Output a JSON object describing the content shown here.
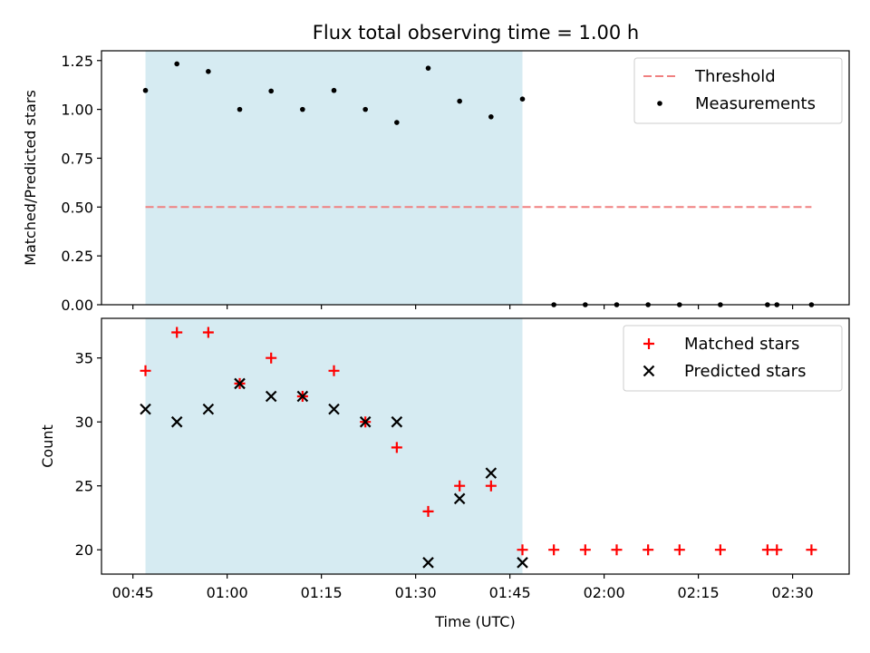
{
  "title": "Flux total observing time = 1.00 h",
  "chart_data": [
    {
      "type": "scatter",
      "ylabel": "Matched/Predicted stars",
      "xlim": [
        "00:40",
        "02:39"
      ],
      "ylim": [
        0,
        1.3
      ],
      "x_ticks": [
        "00:45",
        "01:00",
        "01:15",
        "01:30",
        "01:45",
        "02:00",
        "02:15",
        "02:30"
      ],
      "y_ticks": [
        "0.00",
        "0.25",
        "0.50",
        "0.75",
        "1.00",
        "1.25"
      ],
      "shaded_region": {
        "start": "00:47",
        "end": "01:47",
        "color": "#add8e6"
      },
      "legend_position": "upper right",
      "threshold": {
        "name": "Threshold",
        "value": 0.5,
        "x_range": [
          "00:47",
          "02:33"
        ],
        "color": "#f08080"
      },
      "series": [
        {
          "name": "Measurements",
          "color": "#000000",
          "marker": "dot",
          "x": [
            "00:47",
            "00:52",
            "00:57",
            "01:02",
            "01:07",
            "01:12",
            "01:17",
            "01:22",
            "01:27",
            "01:32",
            "01:37",
            "01:42",
            "01:47",
            "01:52",
            "01:57",
            "02:02",
            "02:07",
            "02:12",
            "02:18.5",
            "02:26",
            "02:27.5",
            "02:33"
          ],
          "y": [
            1.097,
            1.233,
            1.194,
            1.0,
            1.094,
            1.0,
            1.097,
            1.0,
            0.933,
            1.211,
            1.042,
            0.962,
            1.053,
            0,
            0,
            0,
            0,
            0,
            0,
            0,
            0,
            0
          ]
        }
      ]
    },
    {
      "type": "scatter",
      "xlabel": "Time (UTC)",
      "ylabel": "Count",
      "xlim": [
        "00:40",
        "02:39"
      ],
      "ylim": [
        18.1,
        38.1
      ],
      "x_ticks": [
        "00:45",
        "01:00",
        "01:15",
        "01:30",
        "01:45",
        "02:00",
        "02:15",
        "02:30"
      ],
      "y_ticks": [
        "20",
        "25",
        "30",
        "35"
      ],
      "shaded_region": {
        "start": "00:47",
        "end": "01:47",
        "color": "#add8e6"
      },
      "legend_position": "upper right",
      "series": [
        {
          "name": "Matched stars",
          "color": "#ff0000",
          "marker": "plus",
          "x": [
            "00:47",
            "00:52",
            "00:57",
            "01:02",
            "01:07",
            "01:12",
            "01:17",
            "01:22",
            "01:27",
            "01:32",
            "01:37",
            "01:42",
            "01:47",
            "01:52",
            "01:57",
            "02:02",
            "02:07",
            "02:12",
            "02:18.5",
            "02:26",
            "02:27.5",
            "02:33"
          ],
          "y": [
            34,
            37,
            37,
            33,
            35,
            32,
            34,
            30,
            28,
            23,
            25,
            25,
            20,
            20,
            20,
            20,
            20,
            20,
            20,
            20,
            20,
            20
          ]
        },
        {
          "name": "Predicted stars",
          "color": "#000000",
          "marker": "x",
          "x": [
            "00:47",
            "00:52",
            "00:57",
            "01:02",
            "01:07",
            "01:12",
            "01:17",
            "01:22",
            "01:27",
            "01:32",
            "01:37",
            "01:42",
            "01:47"
          ],
          "y": [
            31,
            30,
            31,
            33,
            32,
            32,
            31,
            30,
            30,
            19,
            24,
            26,
            19
          ]
        }
      ]
    }
  ]
}
